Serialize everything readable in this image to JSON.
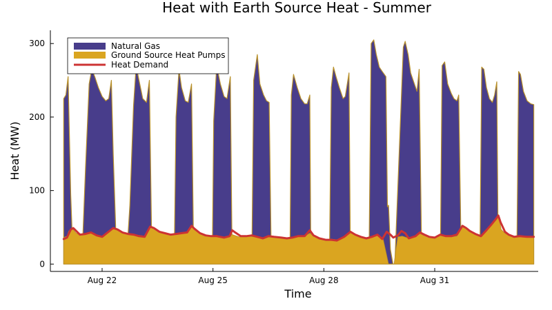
{
  "chart_data": {
    "type": "area",
    "title": "Heat with Earth Source Heat - Summer",
    "xlabel": "Time",
    "ylabel": "Heat (MW)",
    "ylim": [
      -10,
      318
    ],
    "xlim_days": [
      20.6,
      33.8
    ],
    "x_ticks": [
      {
        "label": "Aug 22",
        "value": 22
      },
      {
        "label": "Aug 25",
        "value": 25
      },
      {
        "label": "Aug 28",
        "value": 28
      },
      {
        "label": "Aug 31",
        "value": 31
      }
    ],
    "y_ticks": [
      0,
      100,
      200,
      300
    ],
    "grid": false,
    "legend_position": "top-left",
    "series": [
      {
        "name": "Natural Gas",
        "kind": "stacked-area",
        "color": "#483d8b",
        "points": [
          [
            20.96,
            225
          ],
          [
            21.02,
            230
          ],
          [
            21.08,
            255
          ],
          [
            21.15,
            95
          ],
          [
            21.22,
            0
          ],
          [
            21.45,
            0
          ],
          [
            21.55,
            130
          ],
          [
            21.65,
            245
          ],
          [
            21.72,
            265
          ],
          [
            21.8,
            255
          ],
          [
            21.9,
            240
          ],
          [
            22.0,
            228
          ],
          [
            22.1,
            222
          ],
          [
            22.18,
            225
          ],
          [
            22.25,
            250
          ],
          [
            22.3,
            150
          ],
          [
            22.4,
            0
          ],
          [
            22.65,
            0
          ],
          [
            22.75,
            80
          ],
          [
            22.85,
            215
          ],
          [
            22.92,
            270
          ],
          [
            23.0,
            250
          ],
          [
            23.1,
            225
          ],
          [
            23.2,
            220
          ],
          [
            23.28,
            250
          ],
          [
            23.35,
            0
          ],
          [
            23.95,
            0
          ],
          [
            24.0,
            200
          ],
          [
            24.08,
            265
          ],
          [
            24.15,
            240
          ],
          [
            24.25,
            222
          ],
          [
            24.33,
            220
          ],
          [
            24.42,
            245
          ],
          [
            24.48,
            0
          ],
          [
            24.98,
            0
          ],
          [
            25.02,
            195
          ],
          [
            25.1,
            270
          ],
          [
            25.2,
            245
          ],
          [
            25.3,
            228
          ],
          [
            25.38,
            225
          ],
          [
            25.47,
            255
          ],
          [
            25.52,
            0
          ],
          [
            26.05,
            0
          ],
          [
            26.1,
            250
          ],
          [
            26.2,
            285
          ],
          [
            26.27,
            245
          ],
          [
            26.37,
            230
          ],
          [
            26.45,
            222
          ],
          [
            26.52,
            220
          ],
          [
            26.58,
            0
          ],
          [
            27.08,
            0
          ],
          [
            27.12,
            230
          ],
          [
            27.18,
            258
          ],
          [
            27.28,
            240
          ],
          [
            27.38,
            225
          ],
          [
            27.48,
            218
          ],
          [
            27.55,
            218
          ],
          [
            27.62,
            230
          ],
          [
            27.65,
            0
          ],
          [
            28.15,
            0
          ],
          [
            28.2,
            240
          ],
          [
            28.26,
            268
          ],
          [
            28.33,
            255
          ],
          [
            28.42,
            240
          ],
          [
            28.52,
            225
          ],
          [
            28.58,
            228
          ],
          [
            28.68,
            260
          ],
          [
            28.72,
            0
          ],
          [
            29.22,
            0
          ],
          [
            29.28,
            300
          ],
          [
            29.35,
            305
          ],
          [
            29.42,
            285
          ],
          [
            29.5,
            268
          ],
          [
            29.58,
            262
          ],
          [
            29.68,
            255
          ],
          [
            29.72,
            78
          ],
          [
            29.75,
            80
          ],
          [
            29.8,
            20
          ],
          [
            29.87,
            0
          ],
          [
            29.92,
            0
          ],
          [
            30.15,
            295
          ],
          [
            30.2,
            303
          ],
          [
            30.28,
            285
          ],
          [
            30.35,
            260
          ],
          [
            30.45,
            245
          ],
          [
            30.52,
            235
          ],
          [
            30.58,
            265
          ],
          [
            30.65,
            0
          ],
          [
            31.15,
            0
          ],
          [
            31.2,
            270
          ],
          [
            31.27,
            275
          ],
          [
            31.35,
            245
          ],
          [
            31.45,
            232
          ],
          [
            31.52,
            225
          ],
          [
            31.6,
            222
          ],
          [
            31.65,
            230
          ],
          [
            31.72,
            0
          ],
          [
            32.22,
            0
          ],
          [
            32.27,
            268
          ],
          [
            32.33,
            265
          ],
          [
            32.4,
            240
          ],
          [
            32.48,
            225
          ],
          [
            32.56,
            220
          ],
          [
            32.62,
            230
          ],
          [
            32.68,
            248
          ],
          [
            32.72,
            0
          ],
          [
            33.22,
            0
          ],
          [
            33.27,
            262
          ],
          [
            33.32,
            258
          ],
          [
            33.4,
            235
          ],
          [
            33.5,
            222
          ],
          [
            33.6,
            218
          ],
          [
            33.68,
            217
          ]
        ]
      },
      {
        "name": "Ground Source Heat Pumps",
        "kind": "stacked-area",
        "color": "#daa520",
        "points": [
          [
            20.96,
            36
          ],
          [
            21.05,
            38
          ],
          [
            21.1,
            45
          ],
          [
            21.2,
            48
          ],
          [
            21.3,
            42
          ],
          [
            21.4,
            40
          ],
          [
            21.55,
            41
          ],
          [
            21.7,
            42
          ],
          [
            21.85,
            39
          ],
          [
            22.0,
            37
          ],
          [
            22.15,
            42
          ],
          [
            22.3,
            48
          ],
          [
            22.42,
            47
          ],
          [
            22.55,
            44
          ],
          [
            22.7,
            41
          ],
          [
            22.85,
            40
          ],
          [
            23.0,
            39
          ],
          [
            23.15,
            38
          ],
          [
            23.3,
            50
          ],
          [
            23.4,
            48
          ],
          [
            23.55,
            44
          ],
          [
            23.7,
            42
          ],
          [
            23.85,
            40
          ],
          [
            24.0,
            41
          ],
          [
            24.15,
            43
          ],
          [
            24.3,
            42
          ],
          [
            24.42,
            51
          ],
          [
            24.5,
            47
          ],
          [
            24.65,
            42
          ],
          [
            24.8,
            39
          ],
          [
            24.95,
            38
          ],
          [
            25.1,
            39
          ],
          [
            25.3,
            36
          ],
          [
            25.45,
            38
          ],
          [
            25.52,
            40
          ],
          [
            25.7,
            37
          ],
          [
            25.85,
            38
          ],
          [
            26.0,
            38
          ],
          [
            26.2,
            36
          ],
          [
            26.35,
            35
          ],
          [
            26.5,
            38
          ],
          [
            26.65,
            37
          ],
          [
            26.85,
            36
          ],
          [
            27.0,
            35
          ],
          [
            27.15,
            36
          ],
          [
            27.3,
            38
          ],
          [
            27.48,
            38
          ],
          [
            27.62,
            42
          ],
          [
            27.72,
            38
          ],
          [
            27.88,
            35
          ],
          [
            28.05,
            33
          ],
          [
            28.2,
            34
          ],
          [
            28.35,
            33
          ],
          [
            28.55,
            37
          ],
          [
            28.72,
            43
          ],
          [
            28.85,
            40
          ],
          [
            29.0,
            37
          ],
          [
            29.15,
            35
          ],
          [
            29.3,
            37
          ],
          [
            29.45,
            40
          ],
          [
            29.6,
            35
          ],
          [
            29.75,
            0
          ],
          [
            29.9,
            0
          ],
          [
            30.0,
            37
          ],
          [
            30.12,
            38
          ],
          [
            30.3,
            35
          ],
          [
            30.48,
            38
          ],
          [
            30.6,
            42
          ],
          [
            30.7,
            39
          ],
          [
            30.85,
            37
          ],
          [
            31.0,
            36
          ],
          [
            31.15,
            40
          ],
          [
            31.3,
            38
          ],
          [
            31.45,
            37
          ],
          [
            31.6,
            38
          ],
          [
            31.75,
            52
          ],
          [
            31.85,
            48
          ],
          [
            31.95,
            44
          ],
          [
            32.1,
            41
          ],
          [
            32.25,
            38
          ],
          [
            32.4,
            45
          ],
          [
            32.52,
            53
          ],
          [
            32.65,
            62
          ],
          [
            32.72,
            67
          ],
          [
            32.8,
            47
          ],
          [
            32.9,
            42
          ],
          [
            33.0,
            39
          ],
          [
            33.15,
            37
          ],
          [
            33.3,
            38
          ],
          [
            33.5,
            37
          ],
          [
            33.68,
            37
          ]
        ]
      },
      {
        "name": "Heat Demand",
        "kind": "line",
        "color": "#cc3333",
        "points": [
          [
            20.96,
            34
          ],
          [
            21.05,
            36
          ],
          [
            21.15,
            47
          ],
          [
            21.22,
            49
          ],
          [
            21.3,
            45
          ],
          [
            21.4,
            40
          ],
          [
            21.55,
            41
          ],
          [
            21.7,
            43
          ],
          [
            21.85,
            39
          ],
          [
            22.0,
            37
          ],
          [
            22.15,
            43
          ],
          [
            22.3,
            49
          ],
          [
            22.42,
            47
          ],
          [
            22.55,
            43
          ],
          [
            22.7,
            41
          ],
          [
            22.85,
            40
          ],
          [
            23.0,
            38
          ],
          [
            23.15,
            37
          ],
          [
            23.3,
            51
          ],
          [
            23.4,
            49
          ],
          [
            23.55,
            44
          ],
          [
            23.7,
            42
          ],
          [
            23.85,
            40
          ],
          [
            24.0,
            41
          ],
          [
            24.15,
            42
          ],
          [
            24.3,
            43
          ],
          [
            24.42,
            52
          ],
          [
            24.5,
            48
          ],
          [
            24.65,
            42
          ],
          [
            24.8,
            39
          ],
          [
            24.95,
            38
          ],
          [
            25.1,
            38
          ],
          [
            25.3,
            36
          ],
          [
            25.45,
            38
          ],
          [
            25.52,
            46
          ],
          [
            25.6,
            43
          ],
          [
            25.75,
            38
          ],
          [
            25.9,
            38
          ],
          [
            26.05,
            39
          ],
          [
            26.2,
            37
          ],
          [
            26.35,
            35
          ],
          [
            26.5,
            38
          ],
          [
            26.65,
            37
          ],
          [
            26.85,
            36
          ],
          [
            27.0,
            35
          ],
          [
            27.15,
            36
          ],
          [
            27.3,
            38
          ],
          [
            27.48,
            38
          ],
          [
            27.62,
            46
          ],
          [
            27.72,
            39
          ],
          [
            27.88,
            35
          ],
          [
            28.05,
            33
          ],
          [
            28.2,
            33
          ],
          [
            28.35,
            32
          ],
          [
            28.55,
            37
          ],
          [
            28.72,
            44
          ],
          [
            28.85,
            40
          ],
          [
            29.0,
            37
          ],
          [
            29.15,
            35
          ],
          [
            29.3,
            37
          ],
          [
            29.45,
            40
          ],
          [
            29.58,
            34
          ],
          [
            29.7,
            44
          ],
          [
            29.8,
            40
          ],
          [
            29.88,
            36
          ],
          [
            30.0,
            39
          ],
          [
            30.1,
            45
          ],
          [
            30.2,
            42
          ],
          [
            30.3,
            35
          ],
          [
            30.48,
            38
          ],
          [
            30.6,
            43
          ],
          [
            30.72,
            40
          ],
          [
            30.85,
            37
          ],
          [
            31.0,
            36
          ],
          [
            31.15,
            40
          ],
          [
            31.3,
            38
          ],
          [
            31.45,
            38
          ],
          [
            31.6,
            40
          ],
          [
            31.75,
            52
          ],
          [
            31.85,
            49
          ],
          [
            31.95,
            45
          ],
          [
            32.1,
            41
          ],
          [
            32.25,
            38
          ],
          [
            32.4,
            46
          ],
          [
            32.52,
            53
          ],
          [
            32.65,
            61
          ],
          [
            32.72,
            66
          ],
          [
            32.78,
            57
          ],
          [
            32.9,
            44
          ],
          [
            33.0,
            40
          ],
          [
            33.15,
            37
          ],
          [
            33.3,
            38
          ],
          [
            33.5,
            37
          ],
          [
            33.68,
            37
          ]
        ]
      }
    ]
  }
}
